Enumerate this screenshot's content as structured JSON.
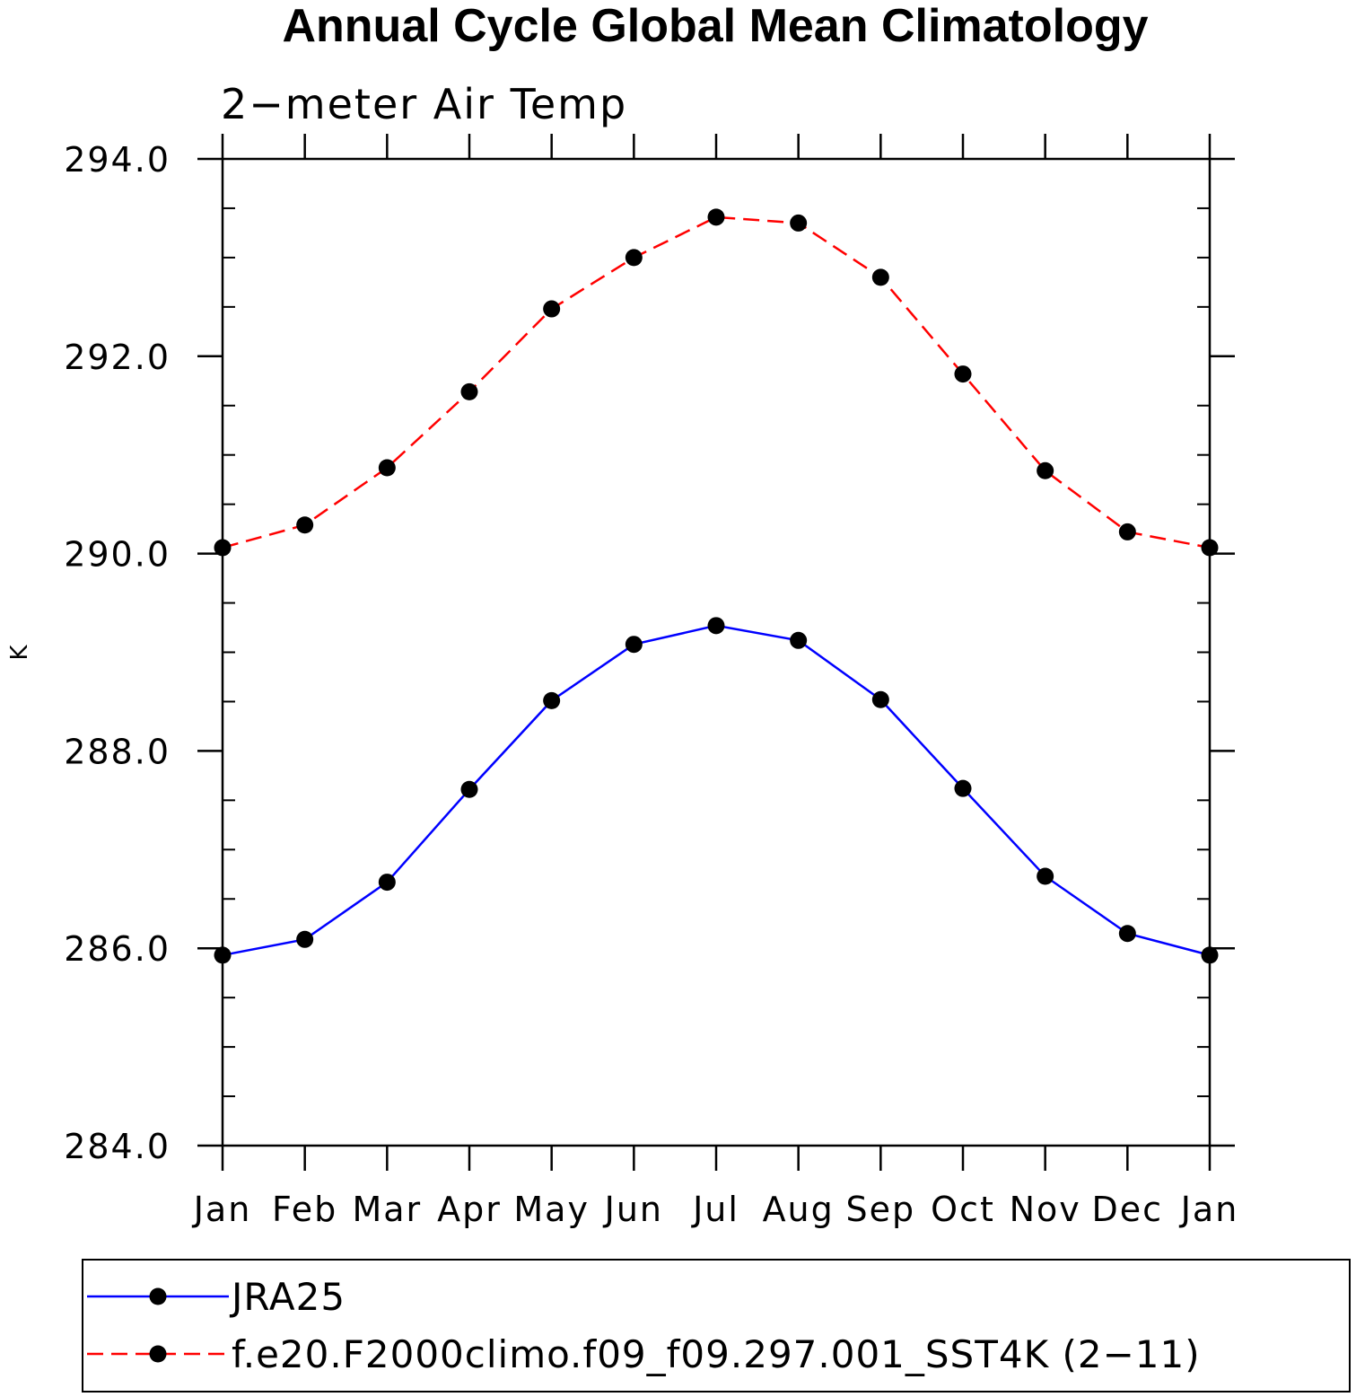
{
  "chart_data": {
    "type": "line",
    "title": "Annual Cycle Global Mean Climatology",
    "subtitle": "2−meter Air Temp",
    "xlabel": "",
    "ylabel": "K",
    "categories": [
      "Jan",
      "Feb",
      "Mar",
      "Apr",
      "May",
      "Jun",
      "Jul",
      "Aug",
      "Sep",
      "Oct",
      "Nov",
      "Dec",
      "Jan"
    ],
    "ylim": [
      284.0,
      294.0
    ],
    "yticks": [
      "284.0",
      "286.0",
      "288.0",
      "290.0",
      "292.0",
      "294.0"
    ],
    "ytick_values": [
      284,
      286,
      288,
      290,
      292,
      294
    ],
    "grid": false,
    "legend_position": "bottom",
    "series": [
      {
        "name": "JRA25",
        "color": "#0000ff",
        "dashed": false,
        "marker": "circle",
        "values": [
          285.93,
          286.09,
          286.67,
          287.61,
          288.51,
          289.08,
          289.27,
          289.12,
          288.52,
          287.62,
          286.73,
          286.15,
          285.93
        ]
      },
      {
        "name": "f.e20.F2000climo.f09_f09.297.001_SST4K (2−11)",
        "color": "#ff0000",
        "dashed": true,
        "marker": "circle",
        "values": [
          290.06,
          290.29,
          290.87,
          291.64,
          292.48,
          293.0,
          293.41,
          293.35,
          292.8,
          291.82,
          290.84,
          290.22,
          290.06
        ]
      }
    ]
  }
}
